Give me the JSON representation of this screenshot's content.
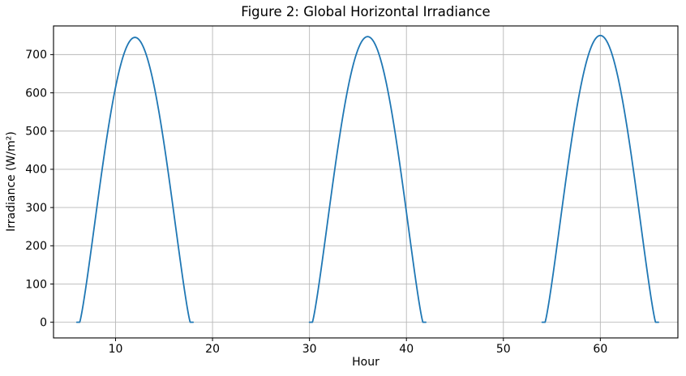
{
  "chart_data": {
    "type": "line",
    "title": "Figure 2: Global Horizontal Irradiance",
    "xlabel": "Hour",
    "ylabel": "Irradiance (W/m²)",
    "xlim": [
      3.6,
      68.0
    ],
    "ylim": [
      -41,
      775
    ],
    "xticks": [
      10,
      20,
      30,
      40,
      50,
      60
    ],
    "yticks": [
      0,
      100,
      200,
      300,
      400,
      500,
      600,
      700
    ],
    "grid": true,
    "legend": null,
    "line_color": "#1f77b4",
    "grid_color": "#b8b8b8",
    "spine_color": "#000000",
    "tick_label_color": "#000000",
    "line_width": 1.8,
    "sample_step": 0.05,
    "shape": "sin^k between sunrise and sunset, 0 elsewhere",
    "shape_exponent": 1.2,
    "peaks": [
      {
        "hour": 12,
        "value": 745
      },
      {
        "hour": 36,
        "value": 747
      },
      {
        "hour": 60,
        "value": 750
      }
    ],
    "series": [
      {
        "name": "Global Horizontal Irradiance",
        "segments": [
          {
            "start_hour": 6.0,
            "end_hour": 18.0,
            "sunrise": 6.3,
            "sunset": 17.7,
            "peak_hour": 12,
            "peak_value": 745
          },
          {
            "start_hour": 30.0,
            "end_hour": 42.0,
            "sunrise": 30.3,
            "sunset": 41.7,
            "peak_hour": 36,
            "peak_value": 747
          },
          {
            "start_hour": 54.0,
            "end_hour": 66.0,
            "sunrise": 54.3,
            "sunset": 65.7,
            "peak_hour": 60,
            "peak_value": 750
          }
        ]
      }
    ]
  }
}
